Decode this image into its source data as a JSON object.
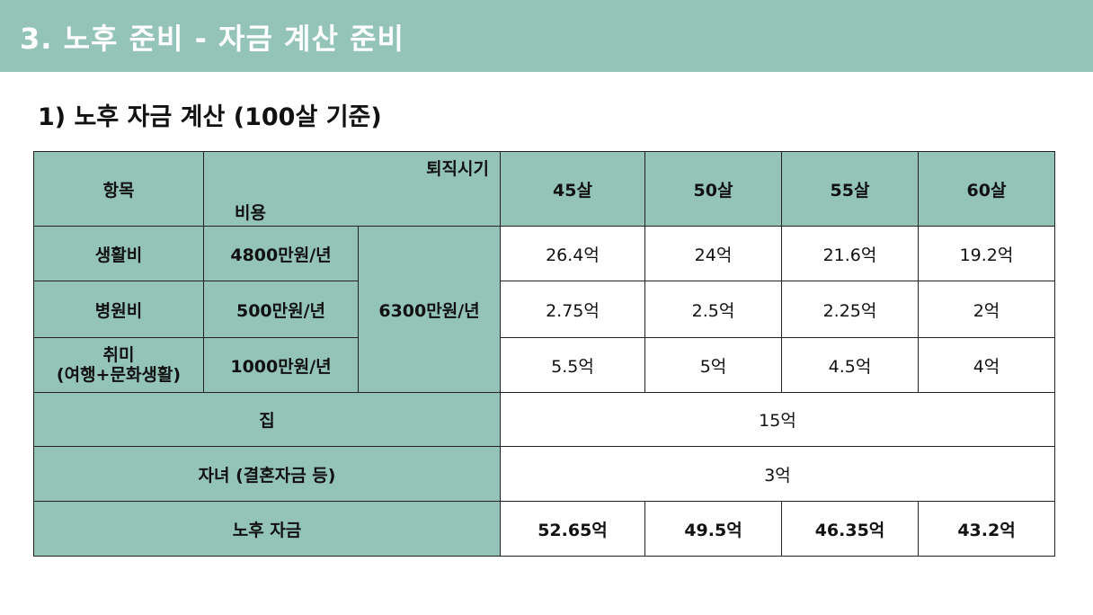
{
  "header": {
    "title": "3. 노후 준비 - 자금 계산 준비"
  },
  "section": {
    "subtitle": "1) 노후 자금 계산 (100살 기준)"
  },
  "table": {
    "corner": {
      "item": "항목",
      "retire_timing": "퇴직시기",
      "cost": "비용"
    },
    "ages": [
      "45살",
      "50살",
      "55살",
      "60살"
    ],
    "rows": [
      {
        "label": "생활비",
        "monthly": "4800만원/년",
        "values": [
          "26.4억",
          "24억",
          "21.6억",
          "19.2억"
        ]
      },
      {
        "label": "병원비",
        "monthly": "500만원/년",
        "values": [
          "2.75억",
          "2.5억",
          "2.25억",
          "2억"
        ]
      },
      {
        "label_line1": "취미",
        "label_line2": "(여행+문화생활)",
        "monthly": "1000만원/년",
        "values": [
          "5.5억",
          "5억",
          "4.5억",
          "4억"
        ]
      }
    ],
    "combined_cost": "6300만원/년",
    "house": {
      "label": "집",
      "value": "15억"
    },
    "children": {
      "label": "자녀 (결혼자금 등)",
      "value": "3억"
    },
    "total": {
      "label": "노후 자금",
      "values": [
        "52.65억",
        "49.5억",
        "46.35억",
        "43.2억"
      ]
    }
  },
  "colors": {
    "header_fill": "#94c4b7",
    "text": "#111111",
    "border": "#222222"
  }
}
